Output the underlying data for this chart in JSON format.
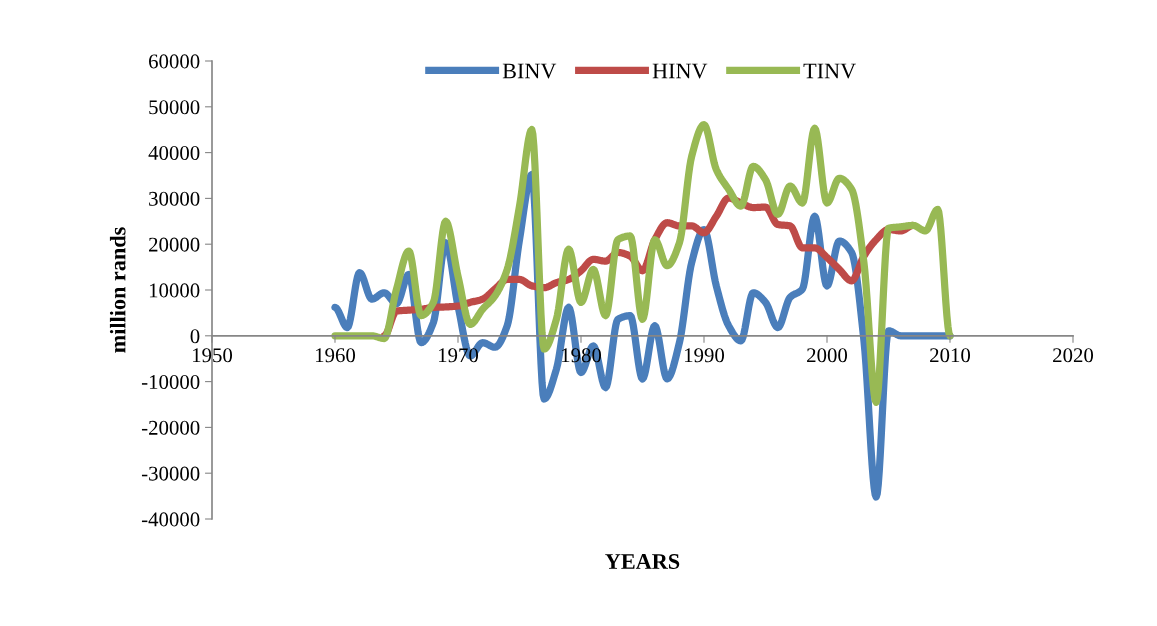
{
  "chart_data": {
    "type": "line",
    "xlabel": "YEARS",
    "ylabel": "million rands",
    "x": [
      1960,
      1961,
      1962,
      1963,
      1964,
      1965,
      1966,
      1967,
      1968,
      1969,
      1970,
      1971,
      1972,
      1973,
      1974,
      1975,
      1976,
      1977,
      1978,
      1979,
      1980,
      1981,
      1982,
      1983,
      1984,
      1985,
      1986,
      1987,
      1988,
      1989,
      1990,
      1991,
      1992,
      1993,
      1994,
      1995,
      1996,
      1997,
      1998,
      1999,
      2000,
      2001,
      2002,
      2003,
      2004,
      2005,
      2006,
      2007,
      2008,
      2009,
      2010
    ],
    "series": [
      {
        "name": "BINV",
        "color": "#4a7ebb",
        "values": [
          6200,
          1800,
          13800,
          8000,
          9400,
          7000,
          13400,
          -1500,
          2900,
          20300,
          6500,
          -4400,
          -1500,
          -2500,
          2200,
          21000,
          35200,
          -13800,
          -7300,
          6200,
          -8000,
          -2200,
          -11300,
          3600,
          4400,
          -9400,
          2200,
          -9400,
          -1500,
          16000,
          23200,
          10900,
          2200,
          -1100,
          9400,
          7300,
          1800,
          8400,
          10200,
          26100,
          10900,
          20700,
          18200,
          -1000,
          -35200,
          1100,
          0,
          0,
          0,
          0,
          0
        ]
      },
      {
        "name": "HINV",
        "color": "#be4b48",
        "values": [
          null,
          null,
          null,
          null,
          0,
          5400,
          5600,
          5800,
          6200,
          6300,
          6500,
          7300,
          8000,
          10200,
          12300,
          12300,
          10900,
          10500,
          11600,
          12300,
          14200,
          16700,
          16300,
          18200,
          17400,
          14200,
          21000,
          24700,
          24000,
          24000,
          22500,
          26100,
          30100,
          29000,
          28000,
          28100,
          24300,
          24000,
          19200,
          19200,
          17100,
          14500,
          12000,
          17400,
          21000,
          23200,
          22900,
          24100,
          null,
          null,
          null
        ]
      },
      {
        "name": "TINV",
        "color": "#98b954",
        "values": [
          0,
          0,
          0,
          0,
          -600,
          10200,
          18500,
          4400,
          7300,
          25000,
          13000,
          2500,
          5800,
          8700,
          14500,
          28300,
          45000,
          -2900,
          3600,
          18900,
          7300,
          14500,
          4400,
          21000,
          21800,
          3600,
          21000,
          15300,
          20300,
          39200,
          46100,
          36300,
          32000,
          28300,
          37000,
          34100,
          26500,
          32700,
          29000,
          45300,
          29000,
          34400,
          32000,
          16000,
          -14500,
          23500,
          23800,
          24100,
          22900,
          27600,
          0
        ]
      }
    ],
    "xlim": [
      1950,
      2020
    ],
    "xticks": [
      1950,
      1960,
      1970,
      1980,
      1990,
      2000,
      2010,
      2020
    ],
    "ylim": [
      -40000,
      60000
    ],
    "yticks": [
      -40000,
      -30000,
      -20000,
      -10000,
      0,
      10000,
      20000,
      30000,
      40000,
      50000,
      60000
    ],
    "grid": false,
    "legend": "top",
    "marker": "none",
    "line_style": "solid"
  }
}
